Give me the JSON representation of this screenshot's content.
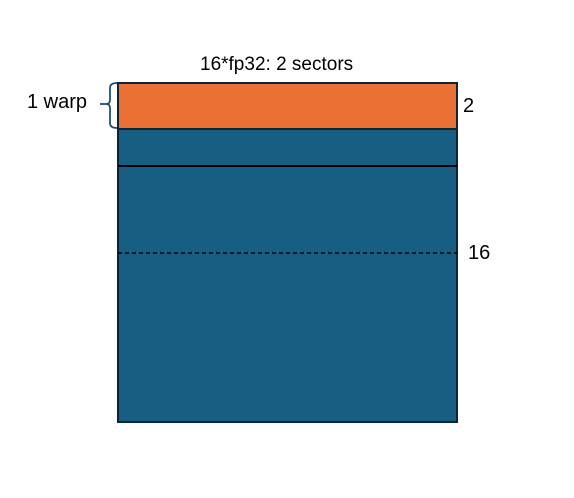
{
  "diagram": {
    "title": "16*fp32:  2 sectors",
    "warp_label": "1 warp",
    "highlight_rows_label": "2",
    "total_rows_label": "16"
  },
  "colors": {
    "highlight": "#ea7033",
    "block": "#175f82",
    "outline": "#0d2438",
    "bracket": "#1f4e79"
  }
}
